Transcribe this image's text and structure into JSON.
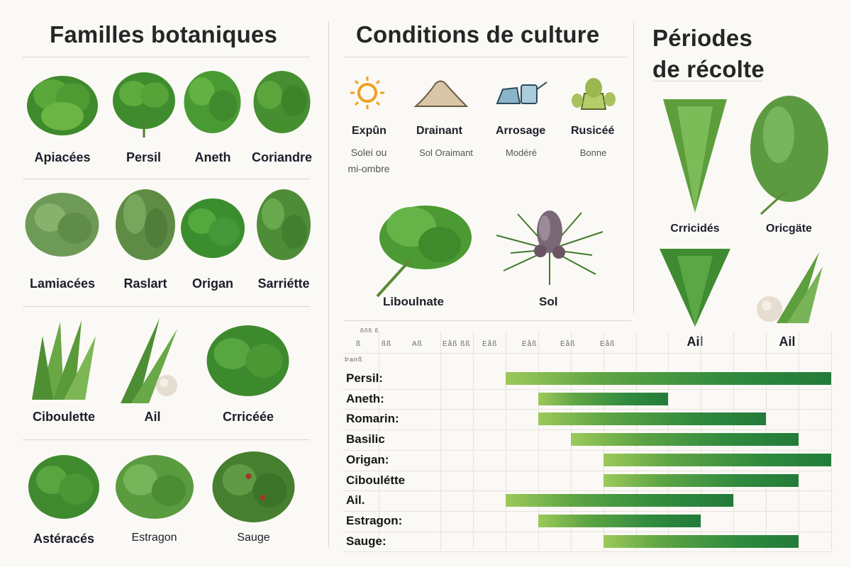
{
  "families": {
    "title": "Familles botaniques",
    "rows": [
      [
        "Apiacées",
        "Persil",
        "Aneth",
        "Coriandre"
      ],
      [
        "Lamiacées",
        "Raslart",
        "Origan",
        "Sarriétte"
      ],
      [
        "Ciboulette",
        "Ail",
        "Crricéée"
      ],
      [
        "Astéracés",
        "Estragon",
        "Sauge"
      ]
    ]
  },
  "conditions": {
    "title": "Conditions de culture",
    "items": [
      {
        "icon": "sun-icon",
        "label": "Expûn",
        "sub1": "Solei ou",
        "sub2": "mi-ombre"
      },
      {
        "icon": "soil-pile-icon",
        "label": "Drainant",
        "sub1": "Sol Oraimant",
        "sub2": ""
      },
      {
        "icon": "watering-can-icon",
        "label": "Arrosage",
        "sub1": "Modéré",
        "sub2": ""
      },
      {
        "icon": "plant-pot-icon",
        "label": "Rusicéé",
        "sub1": "Bonne",
        "sub2": ""
      }
    ],
    "illustrations": [
      "Liboulnate",
      "Sol"
    ]
  },
  "harvest": {
    "title_line1": "Périodes",
    "title_line2": "de récolte",
    "plants": [
      "Crricidés",
      "Oricgäte",
      "Ail",
      "Ail"
    ]
  },
  "gantt": {
    "top_left": "ßñß ß",
    "corner_label": "Þanß",
    "month_headers": [
      "ß",
      "ßß",
      "Aß",
      "Eåß ßß",
      "Eåß",
      "Eåß",
      "Eåß",
      "Eåß"
    ],
    "colors": {
      "start": "#9cc95a",
      "end": "#237b39"
    }
  },
  "chart_data": {
    "type": "gantt",
    "categories": [
      "Persil:",
      "Aneth:",
      "Romarin:",
      "Basilic",
      "Origan:",
      "Ciboulétte",
      "Ail.",
      "Estragon:",
      "Sauge:"
    ],
    "columns": 12,
    "bars": [
      {
        "start": 3,
        "end": 12
      },
      {
        "start": 4,
        "end": 7
      },
      {
        "start": 4,
        "end": 10
      },
      {
        "start": 5,
        "end": 11
      },
      {
        "start": 6,
        "end": 12
      },
      {
        "start": 6,
        "end": 11
      },
      {
        "start": 3,
        "end": 9
      },
      {
        "start": 4,
        "end": 8
      },
      {
        "start": 6,
        "end": 11
      }
    ]
  }
}
